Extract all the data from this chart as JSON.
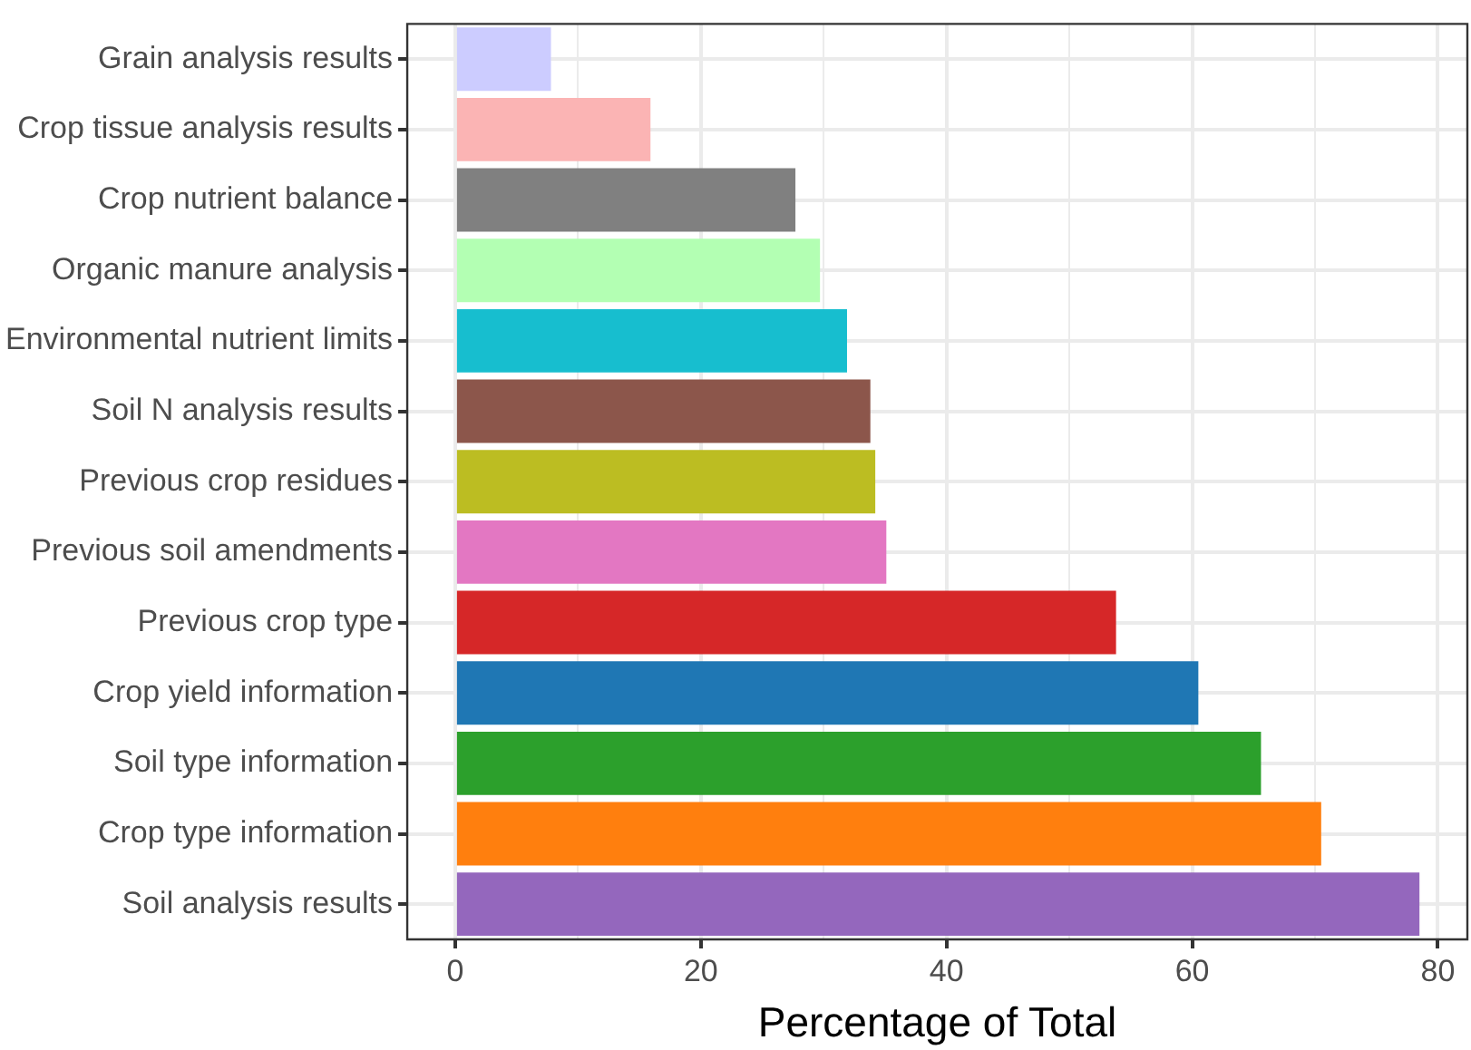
{
  "chart_data": {
    "type": "bar",
    "orientation": "horizontal",
    "xlabel": "Percentage of Total",
    "categories": [
      "Grain analysis results",
      "Crop tissue analysis results",
      "Crop nutrient balance",
      "Organic manure analysis",
      "Environmental nutrient limits",
      "Soil N analysis results",
      "Previous crop residues",
      "Previous soil amendments",
      "Previous crop type",
      "Crop yield information",
      "Soil type information",
      "Crop type information",
      "Soil analysis results"
    ],
    "values": [
      7.8,
      15.9,
      27.7,
      29.7,
      31.9,
      33.8,
      34.2,
      35.1,
      53.8,
      60.5,
      65.6,
      70.5,
      78.5
    ],
    "colors": [
      "#ccccff",
      "#fbb4b4",
      "#808080",
      "#b3ffb3",
      "#17becf",
      "#8c564b",
      "#bcbd22",
      "#e377c2",
      "#d62728",
      "#1f77b4",
      "#2ca02c",
      "#ff7f0e",
      "#9467bd"
    ],
    "xlim": [
      -3.9,
      82.4
    ],
    "xticks": [
      0,
      {
        "value": 10,
        "label": null
      },
      20,
      {
        "value": 30,
        "label": null
      },
      40,
      {
        "value": 50,
        "label": null
      },
      60,
      {
        "value": 70,
        "label": null
      },
      80
    ],
    "grid": true,
    "legend": false
  }
}
